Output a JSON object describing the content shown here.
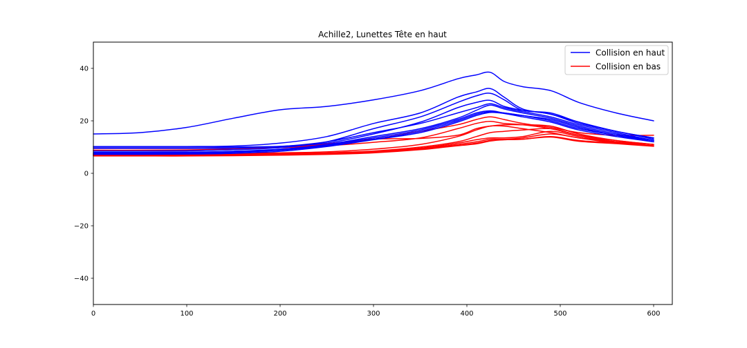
{
  "chart_data": {
    "type": "line",
    "title": "Achille2, Lunettes Tête en haut",
    "xlabel": "",
    "ylabel": "",
    "xlim": [
      0,
      620
    ],
    "ylim": [
      -50,
      50
    ],
    "xticks": [
      0,
      100,
      200,
      300,
      400,
      500,
      600
    ],
    "xtick_labels": [
      "0",
      "100",
      "200",
      "300",
      "400",
      "500",
      "600"
    ],
    "yticks": [
      -40,
      -20,
      0,
      20,
      40
    ],
    "ytick_labels": [
      "−40",
      "−20",
      "0",
      "20",
      "40"
    ],
    "grid": false,
    "legend_placement": "top-right",
    "legend": [
      {
        "label": "Collision en haut",
        "color": "#0000ff"
      },
      {
        "label": "Collision en bas",
        "color": "#ff0000"
      }
    ],
    "x": [
      0,
      50,
      100,
      150,
      200,
      250,
      300,
      350,
      390,
      410,
      425,
      440,
      460,
      490,
      520,
      560,
      600
    ],
    "series": [
      {
        "group": "Collision en haut",
        "color": "#0000ff",
        "values": [
          15,
          15.5,
          17.5,
          21,
          24.2,
          25.5,
          28,
          31.5,
          36,
          37.5,
          38.5,
          35,
          33,
          31.5,
          27,
          23,
          20
        ]
      },
      {
        "group": "Collision en haut",
        "color": "#0000ff",
        "values": [
          10.2,
          10.2,
          10.2,
          10.4,
          11.5,
          14,
          19,
          23,
          29,
          31,
          32.3,
          29,
          24.5,
          22.5,
          19.5,
          16,
          13.5
        ]
      },
      {
        "group": "Collision en haut",
        "color": "#0000ff",
        "values": [
          8.5,
          8.5,
          8.6,
          9,
          9.8,
          12,
          17,
          21.5,
          27,
          29.5,
          30.5,
          28,
          24,
          23,
          19.5,
          16,
          13.5
        ]
      },
      {
        "group": "Collision en haut",
        "color": "#0000ff",
        "values": [
          10,
          10,
          10,
          10,
          10.3,
          11.5,
          15,
          19.5,
          25,
          27,
          27.8,
          25.5,
          24,
          22.5,
          19,
          16,
          13
        ]
      },
      {
        "group": "Collision en haut",
        "color": "#0000ff",
        "values": [
          9.5,
          9.5,
          9.5,
          9.6,
          10.2,
          12,
          15.5,
          19,
          23,
          25,
          26.5,
          25,
          23.5,
          21.5,
          18.5,
          15.5,
          12.5
        ]
      },
      {
        "group": "Collision en haut",
        "color": "#0000ff",
        "values": [
          8,
          8,
          8.1,
          8.4,
          9.2,
          11,
          14,
          17,
          21,
          24,
          26,
          24.5,
          23,
          21,
          18,
          15,
          12.5
        ]
      },
      {
        "group": "Collision en haut",
        "color": "#0000ff",
        "values": [
          7.8,
          7.8,
          7.9,
          8.2,
          9,
          10.8,
          13.5,
          16.5,
          20.5,
          23,
          23.8,
          23,
          22,
          20.5,
          17.5,
          14.5,
          12
        ]
      },
      {
        "group": "Collision en haut",
        "color": "#0000ff",
        "values": [
          7.5,
          7.5,
          7.6,
          8,
          8.8,
          10.5,
          13,
          16,
          20,
          22.5,
          23.5,
          23,
          22,
          20,
          17,
          14.5,
          12.5
        ]
      },
      {
        "group": "Collision en haut",
        "color": "#0000ff",
        "values": [
          7.2,
          7.2,
          7.3,
          7.6,
          8.4,
          10.2,
          12.8,
          15.5,
          19.5,
          22,
          23.2,
          22.8,
          21.5,
          19.5,
          16.5,
          14,
          12
        ]
      },
      {
        "group": "Collision en bas",
        "color": "#ff0000",
        "values": [
          9.5,
          9.5,
          9.5,
          9.6,
          9.8,
          11,
          13,
          16,
          18.5,
          20.5,
          21.5,
          20.5,
          19,
          17.5,
          15.5,
          14.5,
          14.5
        ]
      },
      {
        "group": "Collision en bas",
        "color": "#ff0000",
        "values": [
          8.8,
          8.8,
          8.9,
          9.2,
          9.8,
          10.5,
          11.8,
          13.5,
          17,
          19,
          19.8,
          19,
          18.5,
          17,
          14.5,
          12.5,
          11
        ]
      },
      {
        "group": "Collision en bas",
        "color": "#ff0000",
        "values": [
          8.5,
          8.5,
          8.6,
          9,
          9.8,
          11.2,
          13,
          13.3,
          14.5,
          17,
          18,
          18.5,
          18.5,
          18,
          15,
          12.5,
          11
        ]
      },
      {
        "group": "Collision en bas",
        "color": "#ff0000",
        "values": [
          7.5,
          7.5,
          7.5,
          7.6,
          7.8,
          8.2,
          9.2,
          11,
          14,
          16.5,
          18,
          18,
          17,
          15.5,
          13.5,
          12,
          11
        ]
      },
      {
        "group": "Collision en bas",
        "color": "#ff0000",
        "values": [
          7.2,
          7.2,
          7.2,
          7.3,
          7.5,
          7.8,
          8.5,
          10,
          12,
          14,
          15.5,
          16,
          16.5,
          17,
          14.5,
          12,
          10.5
        ]
      },
      {
        "group": "Collision en bas",
        "color": "#ff0000",
        "values": [
          7,
          7,
          7,
          7.1,
          7.3,
          7.6,
          8.2,
          9.6,
          11.5,
          12.8,
          13.5,
          13.5,
          14,
          16,
          14,
          11.8,
          10.5
        ]
      },
      {
        "group": "Collision en bas",
        "color": "#ff0000",
        "values": [
          6.9,
          6.9,
          6.9,
          7,
          7.2,
          7.5,
          8,
          9.4,
          11,
          12,
          13,
          13,
          13.5,
          15,
          13.5,
          11.5,
          10.5
        ]
      },
      {
        "group": "Collision en bas",
        "color": "#ff0000",
        "values": [
          6.8,
          6.8,
          6.8,
          6.9,
          7.1,
          7.4,
          7.9,
          9.2,
          10.6,
          11.5,
          12.5,
          12.8,
          13,
          14,
          12.5,
          11.5,
          10.5
        ]
      },
      {
        "group": "Collision en bas",
        "color": "#ff0000",
        "values": [
          6.6,
          6.6,
          6.6,
          6.7,
          6.9,
          7.2,
          7.8,
          9,
          10.5,
          11.2,
          12.3,
          12.8,
          13,
          13.8,
          12.2,
          11.3,
          10.3
        ]
      }
    ]
  }
}
